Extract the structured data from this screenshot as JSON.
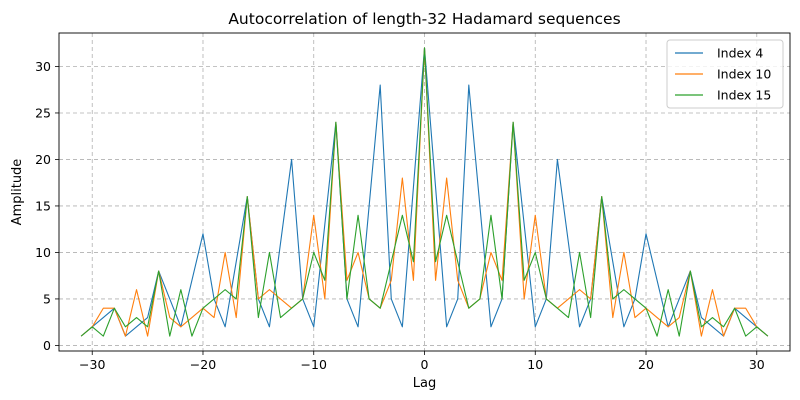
{
  "chart_data": {
    "type": "line",
    "title": "Autocorrelation of length-32 Hadamard sequences",
    "xlabel": "Lag",
    "ylabel": "Amplitude",
    "xlim": [
      -33,
      33
    ],
    "ylim": [
      -0.6,
      33.6
    ],
    "xticks": [
      -30,
      -20,
      -10,
      0,
      10,
      20,
      30
    ],
    "yticks": [
      0,
      5,
      10,
      15,
      20,
      25,
      30
    ],
    "grid": true,
    "legend_position": "top-right",
    "x": [
      -31,
      -30,
      -29,
      -28,
      -27,
      -26,
      -25,
      -24,
      -23,
      -22,
      -21,
      -20,
      -19,
      -18,
      -17,
      -16,
      -15,
      -14,
      -13,
      -12,
      -11,
      -10,
      -9,
      -8,
      -7,
      -6,
      -5,
      -4,
      -3,
      -2,
      -1,
      0,
      1,
      2,
      3,
      4,
      5,
      6,
      7,
      8,
      9,
      10,
      11,
      12,
      13,
      14,
      15,
      16,
      17,
      18,
      19,
      20,
      21,
      22,
      23,
      24,
      25,
      26,
      27,
      28,
      29,
      30,
      31
    ],
    "series": [
      {
        "name": "Index 4",
        "color": "#1f77b4",
        "values": [
          1,
          2,
          3,
          4,
          1,
          2,
          3,
          8,
          5,
          2,
          7,
          12,
          5,
          2,
          9,
          16,
          5,
          2,
          11,
          20,
          5,
          2,
          13,
          24,
          5,
          2,
          15,
          28,
          5,
          2,
          17,
          32,
          17,
          2,
          5,
          28,
          15,
          2,
          5,
          24,
          13,
          2,
          5,
          20,
          11,
          2,
          5,
          16,
          9,
          2,
          5,
          12,
          7,
          2,
          5,
          8,
          3,
          2,
          1,
          4,
          3,
          2,
          1
        ]
      },
      {
        "name": "Index 10",
        "color": "#ff7f0e",
        "values": [
          1,
          2,
          4,
          4,
          1,
          6,
          1,
          8,
          3,
          2,
          3,
          4,
          3,
          10,
          3,
          16,
          5,
          6,
          5,
          4,
          5,
          14,
          5,
          24,
          7,
          10,
          5,
          4,
          7,
          18,
          7,
          32,
          7,
          18,
          7,
          4,
          5,
          10,
          7,
          24,
          5,
          14,
          5,
          4,
          5,
          6,
          5,
          16,
          3,
          10,
          3,
          4,
          3,
          2,
          3,
          8,
          1,
          6,
          1,
          4,
          4,
          2,
          1
        ]
      },
      {
        "name": "Index 15",
        "color": "#2ca02c",
        "values": [
          1,
          2,
          1,
          4,
          2,
          3,
          2,
          8,
          1,
          6,
          1,
          4,
          5,
          6,
          5,
          16,
          3,
          10,
          3,
          4,
          5,
          10,
          7,
          24,
          5,
          14,
          5,
          4,
          9,
          14,
          9,
          32,
          9,
          14,
          9,
          4,
          5,
          14,
          5,
          24,
          7,
          10,
          5,
          4,
          3,
          10,
          3,
          16,
          5,
          6,
          5,
          4,
          1,
          6,
          1,
          8,
          2,
          3,
          2,
          4,
          1,
          2,
          1
        ]
      }
    ]
  }
}
